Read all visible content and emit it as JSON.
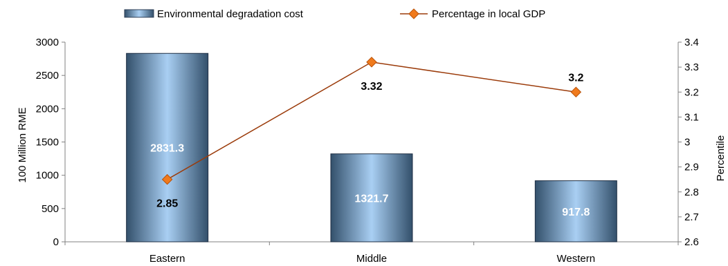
{
  "chart_data": {
    "type": "bar",
    "categories": [
      "Eastern",
      "Middle",
      "Western"
    ],
    "series": [
      {
        "name": "Environmental degradation cost",
        "type": "bar",
        "axis": "left",
        "values": [
          2831.3,
          1321.7,
          917.8
        ],
        "labels": [
          "2831.3",
          "1321.7",
          "917.8"
        ]
      },
      {
        "name": "Percentage in local GDP",
        "type": "line",
        "axis": "right",
        "values": [
          2.85,
          3.32,
          3.2
        ],
        "labels": [
          "2.85",
          "3.32",
          "3.2"
        ]
      }
    ],
    "ylabel": "100 Million RME",
    "y2label": "Percentile",
    "ylim": [
      0,
      3000
    ],
    "y2lim": [
      2.6,
      3.4
    ],
    "yticks": [
      "0",
      "500",
      "1000",
      "1500",
      "2000",
      "2500",
      "3000"
    ],
    "y2ticks": [
      "2.6",
      "2.7",
      "2.8",
      "2.9",
      "3",
      "3.1",
      "3.2",
      "3.3",
      "3.4"
    ],
    "legend_position": "top",
    "grid": false,
    "colors": {
      "bar_light": "#a7cdf2",
      "bar_dark": "#3d5a78",
      "line": "#9b3b0a",
      "marker": "#f07a1c",
      "marker_stroke": "#b8520a"
    }
  }
}
